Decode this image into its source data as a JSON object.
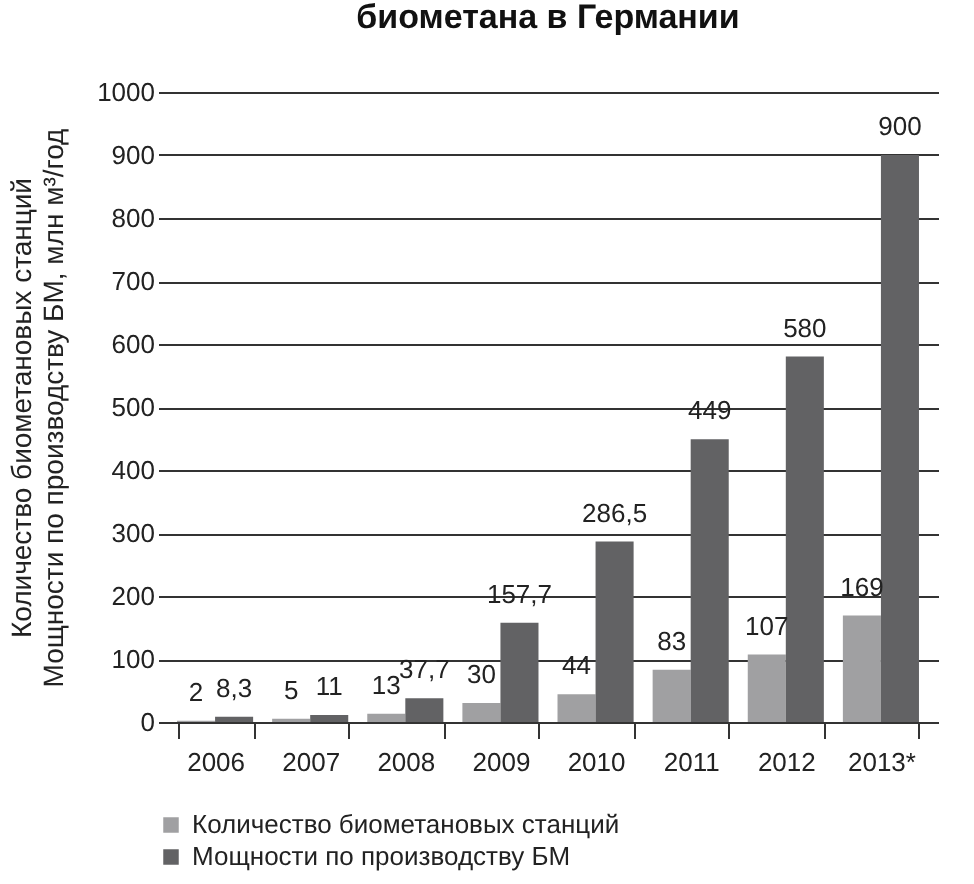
{
  "chart_data": {
    "type": "bar",
    "title": "биометана в Германии",
    "ylabel": "Количество биометановых станций\nМощности по производству БМ, млн м³/год",
    "categories": [
      "2006",
      "2007",
      "2008",
      "2009",
      "2010",
      "2011",
      "2012",
      "2013*"
    ],
    "series": [
      {
        "name": "Количество биометановых станций",
        "color": "#a0a0a2",
        "values": [
          2,
          5,
          13,
          30,
          44,
          83,
          107,
          169
        ],
        "value_labels": [
          "2",
          "5",
          "13",
          "30",
          "44",
          "83",
          "107",
          "169"
        ]
      },
      {
        "name": "Мощности по производству БМ",
        "color": "#626264",
        "values": [
          8.3,
          11,
          37.7,
          157.7,
          286.5,
          449,
          580,
          900
        ],
        "value_labels": [
          "8,3",
          "11",
          "37,7",
          "157,7",
          "286,5",
          "449",
          "580",
          "900"
        ]
      }
    ],
    "ylim": [
      0,
      1000
    ],
    "yticks": [
      0,
      100,
      200,
      300,
      400,
      500,
      600,
      700,
      800,
      900,
      1000
    ],
    "grid": "y",
    "legend": "bottom"
  }
}
